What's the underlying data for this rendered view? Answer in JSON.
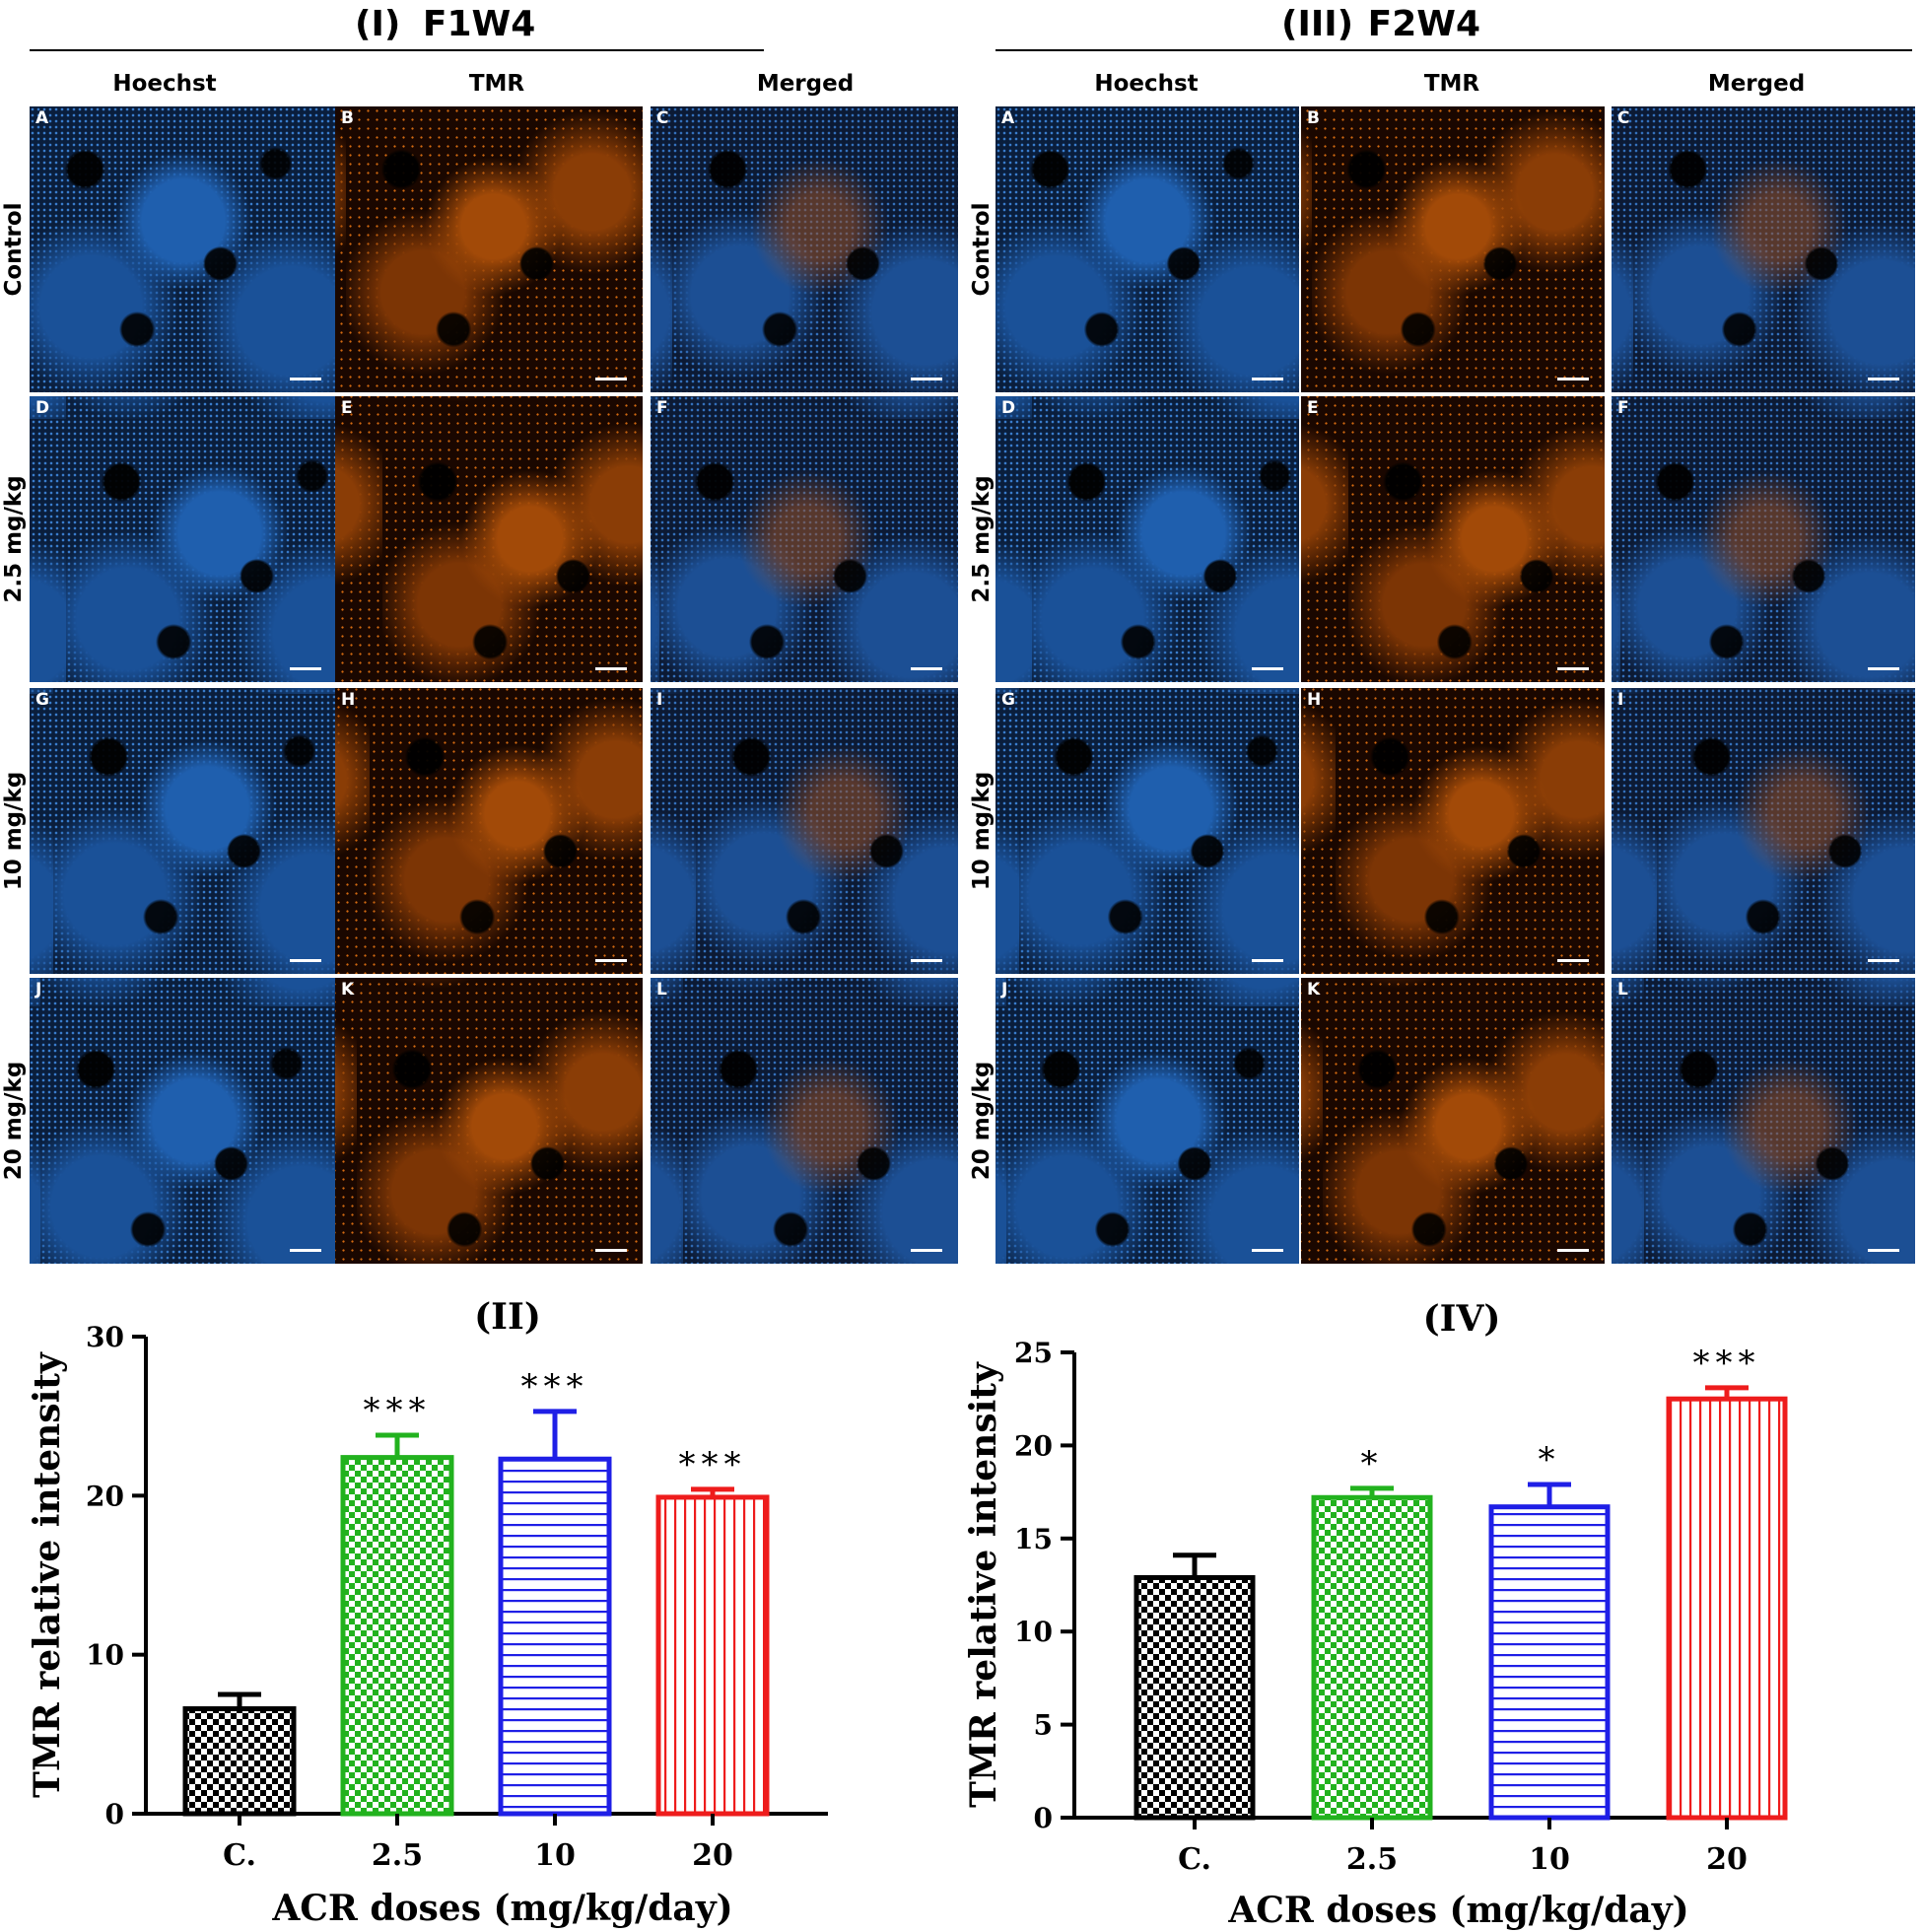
{
  "panels": {
    "p1": {
      "roman": "(I)",
      "name": "F1W4"
    },
    "p3": {
      "roman": "(III)",
      "name": "F2W4"
    }
  },
  "column_headers": [
    "Hoechst",
    "TMR",
    "Merged"
  ],
  "row_labels": [
    "Control",
    "2.5 mg/kg",
    "10 mg/kg",
    "20 mg/kg"
  ],
  "image_letters": [
    "A",
    "B",
    "C",
    "D",
    "E",
    "F",
    "G",
    "H",
    "I",
    "J",
    "K",
    "L"
  ],
  "colors": {
    "control": "#000000",
    "dose_2_5": "#22b21e",
    "dose_10": "#1f1fe6",
    "dose_20": "#ee1c1c"
  },
  "chart_data": [
    {
      "type": "bar",
      "title": "(II)",
      "xlabel": "ACR doses (mg/kg/day)",
      "ylabel": "TMR relative intensity",
      "categories": [
        "C.",
        "2.5",
        "10",
        "20"
      ],
      "values": [
        6.6,
        22.4,
        22.3,
        19.9
      ],
      "error": [
        0.9,
        1.4,
        3.0,
        0.5
      ],
      "significance": [
        "",
        "***",
        "***",
        "***"
      ],
      "patterns": [
        "checker",
        "checker",
        "horizontal",
        "vertical"
      ],
      "ylim": [
        0,
        30
      ],
      "yticks": [
        0,
        10,
        20,
        30
      ]
    },
    {
      "type": "bar",
      "title": "(IV)",
      "xlabel": "ACR doses (mg/kg/day)",
      "ylabel": "TMR relative intensity",
      "categories": [
        "C.",
        "2.5",
        "10",
        "20"
      ],
      "values": [
        12.9,
        17.2,
        16.7,
        22.5
      ],
      "error": [
        1.2,
        0.5,
        1.2,
        0.6
      ],
      "significance": [
        "",
        "*",
        "*",
        "***"
      ],
      "patterns": [
        "checker",
        "checker",
        "horizontal",
        "vertical"
      ],
      "ylim": [
        0,
        25
      ],
      "yticks": [
        0,
        5,
        10,
        15,
        20,
        25
      ]
    }
  ]
}
